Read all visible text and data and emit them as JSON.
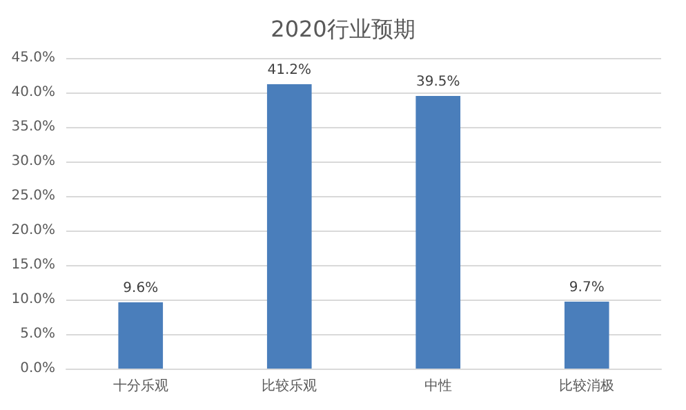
{
  "chart_data": {
    "type": "bar",
    "title": "2020行业预期",
    "categories": [
      "十分乐观",
      "比较乐观",
      "中性",
      "比较消极"
    ],
    "values": [
      9.6,
      41.2,
      39.5,
      9.7
    ],
    "value_labels": [
      "9.6%",
      "41.2%",
      "39.5%",
      "9.7%"
    ],
    "color": "#4a7ebb",
    "ylim": [
      0,
      45
    ],
    "yticks": [
      {
        "value": 0,
        "label": "0.0%"
      },
      {
        "value": 5,
        "label": "5.0%"
      },
      {
        "value": 10,
        "label": "10.0%"
      },
      {
        "value": 15,
        "label": "15.0%"
      },
      {
        "value": 20,
        "label": "20.0%"
      },
      {
        "value": 25,
        "label": "25.0%"
      },
      {
        "value": 30,
        "label": "30.0%"
      },
      {
        "value": 35,
        "label": "35.0%"
      },
      {
        "value": 40,
        "label": "40.0%"
      },
      {
        "value": 45,
        "label": "45.0%"
      }
    ],
    "grid": true
  }
}
